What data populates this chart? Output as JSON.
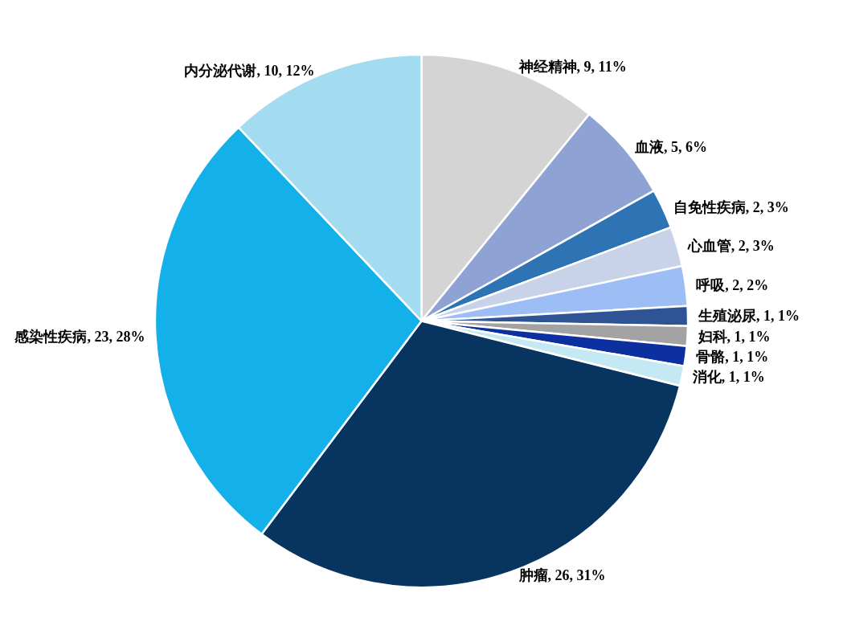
{
  "chart_data": {
    "type": "pie",
    "categories": [
      "神经精神",
      "血液",
      "自免性疾病",
      "心血管",
      "呼吸",
      "生殖泌尿",
      "妇科",
      "骨骼",
      "消化",
      "肿瘤",
      "感染性疾病",
      "内分泌代谢"
    ],
    "values": [
      9,
      5,
      2,
      2,
      2,
      1,
      1,
      1,
      1,
      26,
      23,
      10
    ],
    "value_labels": [
      "9, 11%",
      "5, 6%",
      "2, 3%",
      "2, 3%",
      "2, 2%",
      "1, 1%",
      "1, 1%",
      "1, 1%",
      "1, 1%",
      "26, 31%",
      "23, 28%",
      "10, 12%"
    ],
    "colors": [
      "#d4d4d4",
      "#8ea2d3",
      "#2e74b5",
      "#c8d2e8",
      "#9dbdf5",
      "#2f5496",
      "#a3a3a3",
      "#0c30a0",
      "#c5e8f5",
      "#073560",
      "#14b0ea",
      "#a3dbf1"
    ],
    "legend": false
  }
}
